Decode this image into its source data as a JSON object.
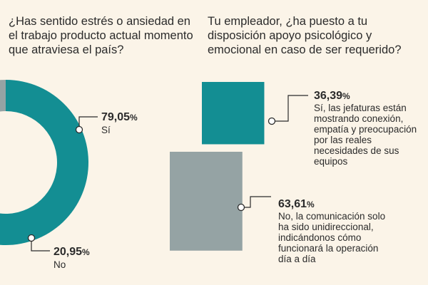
{
  "colors": {
    "background": "#fbf4e8",
    "teal": "#138e93",
    "gray": "#95a3a4",
    "text": "#2b2b2b",
    "leader": "#2b2b2b"
  },
  "chart_data": [
    {
      "type": "pie",
      "variant": "donut",
      "title": "¿Has sentido estrés o ansiedad en el trabajo producto actual momento que atraviesa el país?",
      "slices": [
        {
          "label": "Sí",
          "value": 79.05,
          "value_text": "79,05",
          "unit": "%",
          "color": "#138e93"
        },
        {
          "label": "No",
          "value": 20.95,
          "value_text": "20,95",
          "unit": "%",
          "color": "#95a3a4"
        }
      ]
    },
    {
      "type": "bar",
      "variant": "proportional-squares",
      "title": "Tu empleador, ¿ha puesto a tu disposición apoyo psicológico y emocional en caso de ser requerido?",
      "bars": [
        {
          "label": "Sí, las jefaturas están mostrando conexión, empatía y preocupación por las reales necesidades de sus equipos",
          "label_lines": [
            "Sí, las jefaturas están",
            "mostrando conexión,",
            "empatía y preocupación",
            "por las reales",
            "necesidades de sus",
            "equipos"
          ],
          "value": 36.39,
          "value_text": "36,39",
          "unit": "%",
          "color": "#138e93"
        },
        {
          "label": "No, la comunicación solo ha sido unidireccional, indicándonos cómo funcionará la operación día a día",
          "label_lines": [
            "No, la comunicación solo",
            "ha sido unidireccional,",
            "indicándonos cómo",
            "funcionará la operación",
            "día a día"
          ],
          "value": 63.61,
          "value_text": "63,61",
          "unit": "%",
          "color": "#95a3a4"
        }
      ]
    }
  ]
}
